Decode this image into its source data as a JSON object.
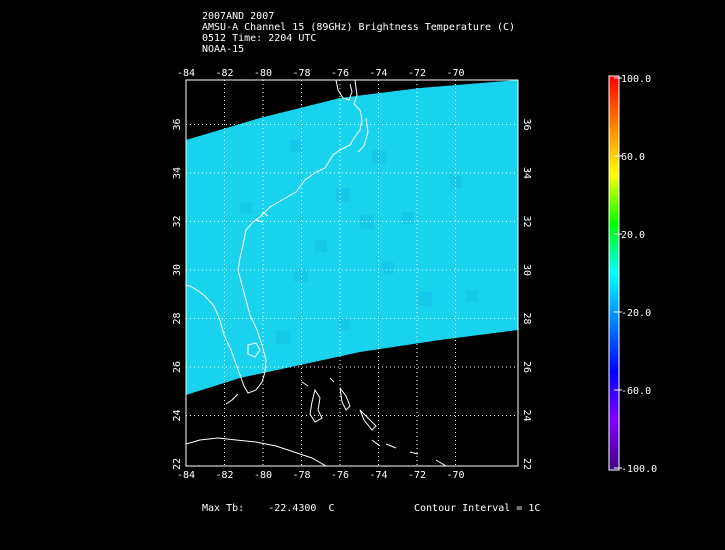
{
  "header": {
    "line1": "2007AND 2007",
    "line2": "AMSU-A Channel 15 (89GHz) Brightness Temperature (C)",
    "line3": "0512 Time: 2204 UTC",
    "line4": "NOAA-15"
  },
  "map": {
    "lon_ticks": [
      "-84",
      "-82",
      "-80",
      "-78",
      "-76",
      "-74",
      "-72",
      "-70"
    ],
    "lat_ticks": [
      "22",
      "24",
      "26",
      "28",
      "30",
      "32",
      "34",
      "36"
    ],
    "swath_color": "#19d3ee",
    "land_outline_color": "#ffffff",
    "grid_style": "dotted"
  },
  "colorbar": {
    "labels": [
      "100.0",
      "60.0",
      "20.0",
      "-20.0",
      "-60.0",
      "-100.0"
    ],
    "colors": [
      "#ff0000",
      "#ff8000",
      "#ffff00",
      "#00ff00",
      "#00ffff",
      "#0080ff",
      "#0000ff",
      "#8000ff",
      "#400080"
    ]
  },
  "footer": {
    "max_tb_label": "Max Tb:",
    "max_tb_value": "-22.4300",
    "max_tb_unit": "C",
    "contour_interval": "Contour Interval = 1C"
  }
}
